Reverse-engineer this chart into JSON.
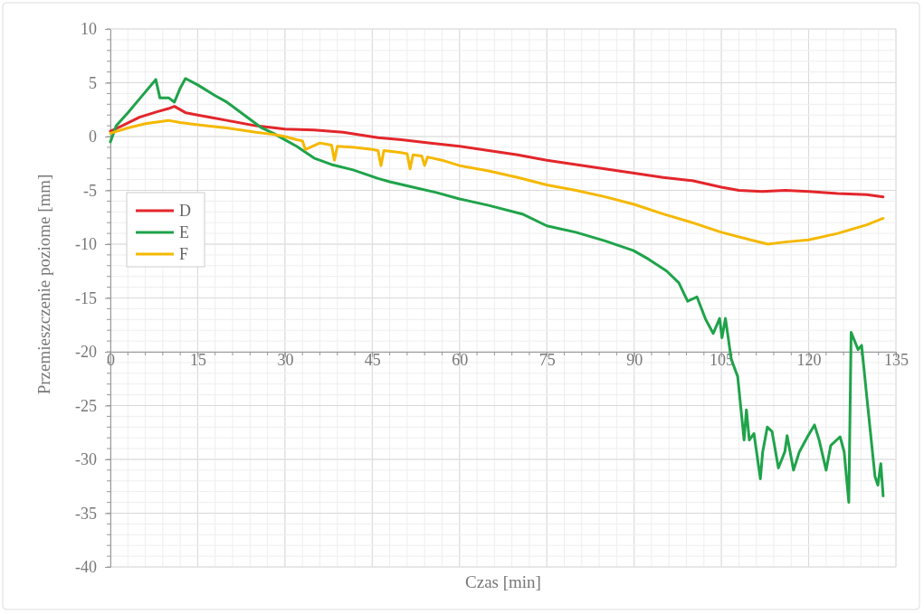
{
  "chart_data": {
    "type": "line",
    "xlabel": "Czas [min]",
    "ylabel": "Przemieszczenie poziome [mm]",
    "xlim": [
      0,
      135
    ],
    "xticks": [
      0,
      15,
      30,
      45,
      60,
      75,
      90,
      105,
      120,
      135
    ],
    "ylim": [
      -40,
      10
    ],
    "yticks": [
      -40,
      -35,
      -30,
      -25,
      -20,
      -15,
      -10,
      -5,
      0,
      5,
      10
    ],
    "grid": true,
    "legend": "left",
    "line_style": "solid",
    "marker": "none",
    "series": [
      {
        "name": "D",
        "color": "#e3262b",
        "x": [
          0,
          2,
          5,
          8,
          10,
          11,
          13,
          15,
          18,
          20,
          25,
          30,
          35,
          40,
          46,
          50,
          55,
          60,
          65,
          70,
          75,
          80,
          85,
          90,
          95,
          100,
          105,
          108,
          112,
          116,
          120,
          125,
          130,
          132.8
        ],
        "values": [
          0.5,
          1.0,
          1.8,
          2.3,
          2.6,
          2.8,
          2.2,
          2.0,
          1.7,
          1.5,
          1.0,
          0.7,
          0.6,
          0.4,
          -0.1,
          -0.3,
          -0.6,
          -0.9,
          -1.3,
          -1.7,
          -2.2,
          -2.6,
          -3.0,
          -3.4,
          -3.8,
          -4.1,
          -4.7,
          -5.0,
          -5.1,
          -5.0,
          -5.1,
          -5.3,
          -5.4,
          -5.6
        ]
      },
      {
        "name": "E",
        "color": "#1fa34a",
        "x": [
          0,
          1,
          3,
          5,
          7.8,
          8.5,
          10,
          11,
          12,
          12.9,
          15,
          18,
          20,
          23,
          26,
          28,
          30,
          32,
          35,
          38,
          41.7,
          46,
          48,
          52,
          56,
          60,
          65,
          70.8,
          75,
          80,
          85,
          89.9,
          92.5,
          95.6,
          97.7,
          99.2,
          100.8,
          102.3,
          103.6,
          104.7,
          105.1,
          105.7,
          106.7,
          107.8,
          108.9,
          109.3,
          109.8,
          110.6,
          111.7,
          112.1,
          112.9,
          113.7,
          114.8,
          115.9,
          116.3,
          117.4,
          118.4,
          119.8,
          121.0,
          121.8,
          123.0,
          123.8,
          125.4,
          126.1,
          126.9,
          127.3,
          128.5,
          129.1,
          129.9,
          131.4,
          131.9,
          132.4,
          132.8
        ],
        "values": [
          -0.5,
          1.0,
          2.2,
          3.5,
          5.3,
          3.6,
          3.6,
          3.2,
          4.5,
          5.4,
          4.8,
          3.8,
          3.2,
          2.0,
          0.8,
          0.3,
          -0.3,
          -0.9,
          -2.0,
          -2.6,
          -3.1,
          -3.9,
          -4.2,
          -4.7,
          -5.2,
          -5.8,
          -6.4,
          -7.2,
          -8.3,
          -8.9,
          -9.7,
          -10.6,
          -11.4,
          -12.5,
          -13.6,
          -15.3,
          -14.9,
          -17.0,
          -18.3,
          -16.9,
          -18.7,
          -16.9,
          -20.7,
          -22.3,
          -28.2,
          -25.4,
          -28.2,
          -27.6,
          -31.8,
          -29.3,
          -27.0,
          -27.4,
          -30.8,
          -29.3,
          -27.8,
          -31.0,
          -29.3,
          -27.9,
          -26.8,
          -28.2,
          -31.0,
          -28.7,
          -27.9,
          -29.3,
          -34.0,
          -18.2,
          -19.8,
          -19.4,
          -23.7,
          -31.6,
          -32.4,
          -30.4,
          -33.4
        ]
      },
      {
        "name": "F",
        "color": "#f5b800",
        "x": [
          0,
          3,
          6,
          10,
          12,
          15,
          20,
          25,
          28,
          30,
          32,
          33,
          33.5,
          36,
          38,
          38.5,
          39,
          42,
          45,
          46,
          46.5,
          47,
          50,
          51,
          51.5,
          52,
          53.5,
          54,
          54.5,
          57,
          60,
          65,
          70,
          75,
          80,
          85,
          90,
          95,
          100,
          105,
          110,
          113,
          116,
          120,
          125,
          130,
          132.8
        ],
        "values": [
          0.3,
          0.8,
          1.2,
          1.5,
          1.3,
          1.1,
          0.8,
          0.4,
          0.2,
          0,
          -0.3,
          -0.4,
          -1.2,
          -0.6,
          -0.8,
          -2.2,
          -0.9,
          -1.0,
          -1.2,
          -1.3,
          -2.7,
          -1.3,
          -1.5,
          -1.6,
          -3.0,
          -1.7,
          -1.8,
          -2.7,
          -1.9,
          -2.2,
          -2.7,
          -3.2,
          -3.8,
          -4.5,
          -5.0,
          -5.6,
          -6.3,
          -7.2,
          -8.0,
          -8.9,
          -9.6,
          -10.0,
          -9.8,
          -9.6,
          -9.0,
          -8.2,
          -7.6
        ]
      }
    ]
  }
}
